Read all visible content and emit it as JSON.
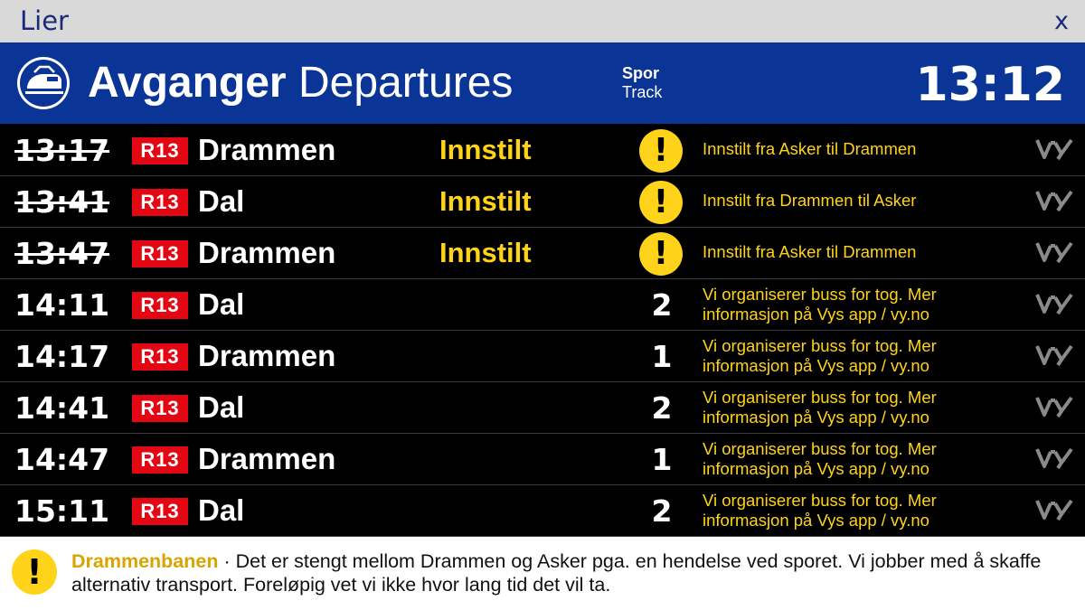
{
  "window": {
    "station": "Lier",
    "close_label": "x"
  },
  "header": {
    "title_no": "Avganger",
    "title_en": "Departures",
    "track_label_no": "Spor",
    "track_label_en": "Track",
    "clock": "13:12",
    "icon": "train-icon"
  },
  "departures": [
    {
      "time": "13:17",
      "line": "R13",
      "destination": "Drammen",
      "status": "Innstilt",
      "cancelled": true,
      "track": "",
      "message": "Innstilt fra Asker til Drammen"
    },
    {
      "time": "13:41",
      "line": "R13",
      "destination": "Dal",
      "status": "Innstilt",
      "cancelled": true,
      "track": "",
      "message": "Innstilt fra Drammen til Asker"
    },
    {
      "time": "13:47",
      "line": "R13",
      "destination": "Drammen",
      "status": "Innstilt",
      "cancelled": true,
      "track": "",
      "message": "Innstilt fra Asker til Drammen"
    },
    {
      "time": "14:11",
      "line": "R13",
      "destination": "Dal",
      "status": "",
      "cancelled": false,
      "track": "2",
      "message": "Vi organiserer buss for tog. Mer informasjon på Vys app / vy.no"
    },
    {
      "time": "14:17",
      "line": "R13",
      "destination": "Drammen",
      "status": "",
      "cancelled": false,
      "track": "1",
      "message": "Vi organiserer buss for tog. Mer informasjon på Vys app / vy.no"
    },
    {
      "time": "14:41",
      "line": "R13",
      "destination": "Dal",
      "status": "",
      "cancelled": false,
      "track": "2",
      "message": "Vi organiserer buss for tog. Mer informasjon på Vys app / vy.no"
    },
    {
      "time": "14:47",
      "line": "R13",
      "destination": "Drammen",
      "status": "",
      "cancelled": false,
      "track": "1",
      "message": "Vi organiserer buss for tog. Mer informasjon på Vys app / vy.no"
    },
    {
      "time": "15:11",
      "line": "R13",
      "destination": "Dal",
      "status": "",
      "cancelled": false,
      "track": "2",
      "message": "Vi organiserer buss for tog. Mer informasjon på Vys app / vy.no"
    }
  ],
  "operator_logo": "vy-logo",
  "footer": {
    "route": "Drammenbanen",
    "separator": " · ",
    "text": "Det er stengt mellom Drammen og Asker pga. en hendelse ved sporet. Vi jobber med å skaffe alternativ transport. Foreløpig vet vi ikke hvor lang tid det vil ta."
  },
  "colors": {
    "header_blue": "#0a3596",
    "warning_yellow": "#ffd31a",
    "line_red": "#e30613",
    "top_bar_grey": "#d9d9d9"
  }
}
